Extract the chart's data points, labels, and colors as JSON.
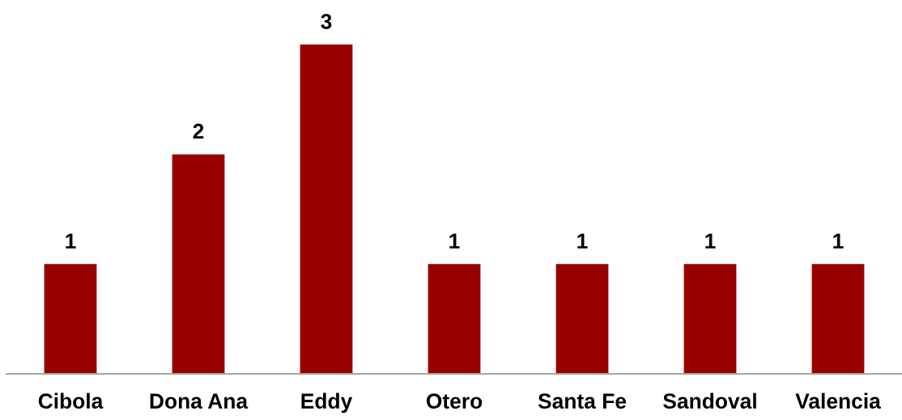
{
  "chart_data": {
    "type": "bar",
    "categories": [
      "Cibola",
      "Dona Ana",
      "Eddy",
      "Otero",
      "Santa Fe",
      "Sandoval",
      "Valencia"
    ],
    "values": [
      1,
      2,
      3,
      1,
      1,
      1,
      1
    ],
    "color": "#990000",
    "data_labels": true,
    "tick_labels": "x"
  }
}
